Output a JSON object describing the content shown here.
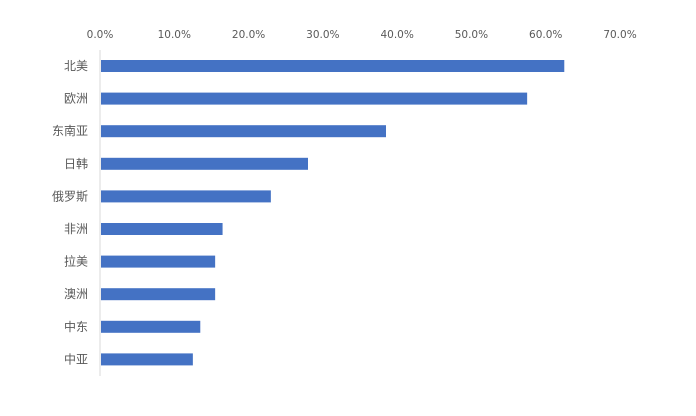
{
  "chart_data": {
    "type": "bar",
    "orientation": "horizontal",
    "categories": [
      "北美",
      "欧洲",
      "东南亚",
      "日韩",
      "俄罗斯",
      "非洲",
      "拉美",
      "澳洲",
      "中东",
      "中亚"
    ],
    "values": [
      62.5,
      57.5,
      38.5,
      28.0,
      23.0,
      16.5,
      15.5,
      15.5,
      13.5,
      12.5
    ],
    "xlim": [
      0,
      70
    ],
    "x_ticks": [
      0,
      10,
      20,
      30,
      40,
      50,
      60,
      70
    ],
    "x_tick_labels": [
      "0.0%",
      "10.0%",
      "20.0%",
      "30.0%",
      "40.0%",
      "50.0%",
      "60.0%",
      "70.0%"
    ],
    "x_axis_position": "top",
    "grid": false,
    "legend": "none",
    "title": "",
    "xlabel": "",
    "ylabel": "",
    "bar_color": "#4472C4"
  }
}
